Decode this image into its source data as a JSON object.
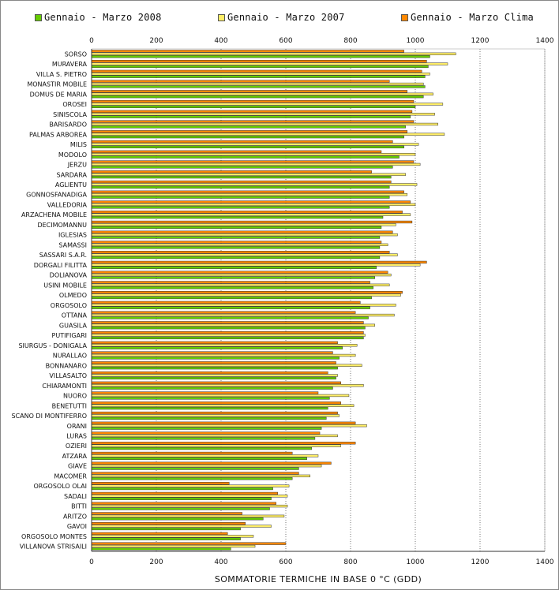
{
  "legend": {
    "items": [
      {
        "label": "Gennaio - Marzo 2008",
        "color": "#66cc00"
      },
      {
        "label": "Gennaio - Marzo 2007",
        "color": "#ffee66"
      },
      {
        "label": "Gennaio - Marzo Clima",
        "color": "#ff8800"
      }
    ]
  },
  "chart_data": {
    "type": "bar",
    "orientation": "horizontal",
    "title": "",
    "xlabel": "SOMMATORIE TERMICHE IN BASE 0 °C (GDD)",
    "ylabel": "",
    "xlim": [
      0,
      1400
    ],
    "xticks": [
      0,
      200,
      400,
      600,
      800,
      1000,
      1200,
      1400
    ],
    "grid": "vertical dotted",
    "legend_position": "top",
    "categories": [
      "SORSO",
      "MURAVERA",
      "VILLA S. PIETRO",
      "MONASTIR MOBILE",
      "DOMUS DE MARIA",
      "OROSEI",
      "SINISCOLA",
      "BARISARDO",
      "PALMAS ARBOREA",
      "MILIS",
      "MODOLO",
      "JERZU",
      "SARDARA",
      "AGLIENTU",
      "GONNOSFANADIGA",
      "VALLEDORIA",
      "ARZACHENA MOBILE",
      "DECIMOMANNU",
      "IGLESIAS",
      "SAMASSI",
      "SASSARI S.A.R.",
      "DORGALI FILITTA",
      "DOLIANOVA",
      "USINI MOBILE",
      "OLMEDO",
      "ORGOSOLO",
      "OTTANA",
      "GUASILA",
      "PUTIFIGARI",
      "SIURGUS - DONIGALA",
      "NURALLAO",
      "BONNANARO",
      "VILLASALTO",
      "CHIARAMONTI",
      "NUORO",
      "BENETUTTI",
      "SCANO DI MONTIFERRO",
      "ORANI",
      "LURAS",
      "OZIERI",
      "ATZARA",
      "GIAVE",
      "MACOMER",
      "ORGOSOLO OLAI",
      "SADALI",
      "BITTI",
      "ARITZO",
      "GAVOI",
      "ORGOSOLO MONTES",
      "VILLANOVA STRISAILI"
    ],
    "series": [
      {
        "name": "Gennaio - Marzo Clima",
        "color": "#ff8800",
        "values": [
          965,
          1035,
          1020,
          920,
          975,
          995,
          990,
          995,
          975,
          930,
          895,
          995,
          865,
          925,
          965,
          985,
          960,
          990,
          930,
          895,
          920,
          1035,
          915,
          860,
          960,
          830,
          815,
          840,
          840,
          760,
          745,
          755,
          730,
          770,
          700,
          770,
          760,
          815,
          705,
          815,
          620,
          740,
          640,
          425,
          575,
          570,
          465,
          475,
          420,
          600
        ]
      },
      {
        "name": "Gennaio - Marzo 2007",
        "color": "#ffee66",
        "values": [
          1125,
          1100,
          1045,
          1025,
          1055,
          1085,
          1060,
          1070,
          1090,
          1010,
          1000,
          1015,
          970,
          1005,
          975,
          1000,
          985,
          940,
          945,
          915,
          945,
          1015,
          925,
          920,
          955,
          940,
          935,
          875,
          845,
          820,
          815,
          835,
          760,
          840,
          795,
          810,
          765,
          850,
          760,
          770,
          700,
          710,
          675,
          610,
          605,
          605,
          595,
          555,
          500,
          505
        ]
      },
      {
        "name": "Gennaio - Marzo 2008",
        "color": "#66cc00",
        "values": [
          1045,
          1040,
          1030,
          1030,
          1025,
          1000,
          985,
          970,
          965,
          965,
          950,
          930,
          925,
          920,
          920,
          920,
          900,
          895,
          890,
          890,
          890,
          880,
          875,
          870,
          865,
          860,
          855,
          845,
          840,
          775,
          765,
          760,
          755,
          745,
          735,
          730,
          725,
          710,
          690,
          680,
          665,
          640,
          620,
          560,
          555,
          550,
          530,
          460,
          460,
          430
        ]
      }
    ]
  }
}
